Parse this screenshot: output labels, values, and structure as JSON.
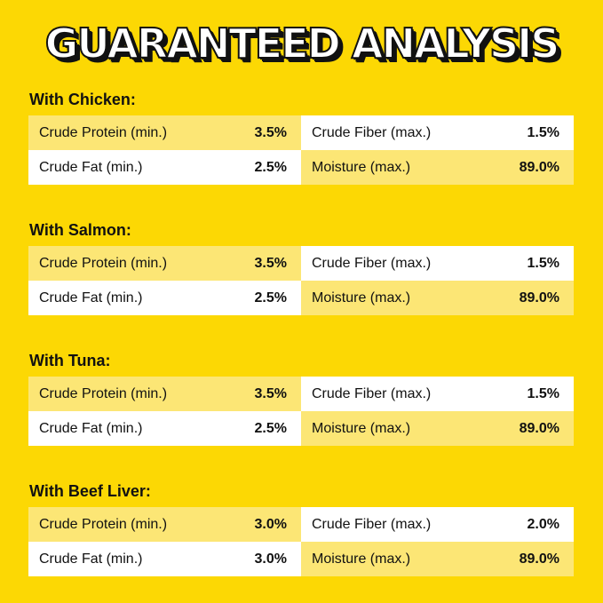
{
  "title": "GUARANTEED ANALYSIS",
  "colors": {
    "background": "#fcd804",
    "light_cell": "#fce675",
    "white_cell": "#ffffff"
  },
  "sections": [
    {
      "label": "With Chicken:",
      "rows": [
        [
          {
            "name": "Crude Protein (min.)",
            "value": "3.5%"
          },
          {
            "name": "Crude Fiber (max.)",
            "value": "1.5%"
          }
        ],
        [
          {
            "name": "Crude Fat (min.)",
            "value": "2.5%"
          },
          {
            "name": "Moisture (max.)",
            "value": "89.0%"
          }
        ]
      ]
    },
    {
      "label": "With Salmon:",
      "rows": [
        [
          {
            "name": "Crude Protein (min.)",
            "value": "3.5%"
          },
          {
            "name": "Crude Fiber (max.)",
            "value": "1.5%"
          }
        ],
        [
          {
            "name": "Crude Fat (min.)",
            "value": "2.5%"
          },
          {
            "name": "Moisture (max.)",
            "value": "89.0%"
          }
        ]
      ]
    },
    {
      "label": "With Tuna:",
      "rows": [
        [
          {
            "name": "Crude Protein (min.)",
            "value": "3.5%"
          },
          {
            "name": "Crude Fiber (max.)",
            "value": "1.5%"
          }
        ],
        [
          {
            "name": "Crude Fat (min.)",
            "value": "2.5%"
          },
          {
            "name": "Moisture (max.)",
            "value": "89.0%"
          }
        ]
      ]
    },
    {
      "label": "With Beef Liver:",
      "rows": [
        [
          {
            "name": "Crude Protein (min.)",
            "value": "3.0%"
          },
          {
            "name": "Crude Fiber (max.)",
            "value": "2.0%"
          }
        ],
        [
          {
            "name": "Crude Fat (min.)",
            "value": "3.0%"
          },
          {
            "name": "Moisture (max.)",
            "value": "89.0%"
          }
        ]
      ]
    }
  ]
}
